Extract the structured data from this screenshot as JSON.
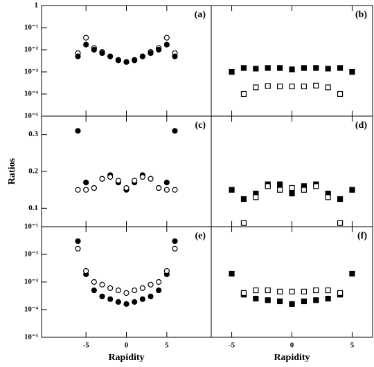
{
  "chart_data": [
    {
      "type": "scatter",
      "label": "(a)",
      "log": true,
      "x": [
        -6,
        -5,
        -4,
        -3,
        -2,
        -1,
        0,
        1,
        2,
        3,
        4,
        5,
        6
      ],
      "xlim": [
        -10.5,
        10.5
      ],
      "xticks": [
        -5,
        0,
        5
      ],
      "ylim": [
        1e-05,
        1
      ],
      "yticks": [
        {
          "value": 1,
          "label": "1"
        },
        {
          "value": 0.1,
          "label": "10⁻¹"
        },
        {
          "value": 0.01,
          "label": "10⁻²"
        },
        {
          "value": 0.001,
          "label": "10⁻³"
        },
        {
          "value": 0.0001,
          "label": "10⁻⁴"
        },
        {
          "value": 1e-05,
          "label": "10⁻⁵"
        }
      ],
      "series": [
        {
          "marker": "circle",
          "filled": false,
          "color": "#000000",
          "values": [
            0.007,
            0.035,
            0.012,
            0.008,
            0.005,
            0.0035,
            0.0028,
            0.0035,
            0.005,
            0.008,
            0.012,
            0.035,
            0.007
          ]
        },
        {
          "marker": "circle",
          "filled": true,
          "color": "#000000",
          "values": [
            0.005,
            0.017,
            0.01,
            0.007,
            0.005,
            0.0033,
            0.0028,
            0.0033,
            0.005,
            0.007,
            0.01,
            0.017,
            0.005
          ]
        }
      ]
    },
    {
      "type": "scatter",
      "label": "(b)",
      "log": true,
      "x": [
        -5,
        -4,
        -3,
        -2,
        -1,
        0,
        1,
        2,
        3,
        4,
        5
      ],
      "xlim": [
        -6.7,
        6.7
      ],
      "xticks": [
        -5,
        0,
        5
      ],
      "ylim": [
        1e-05,
        1
      ],
      "series": [
        {
          "marker": "square",
          "filled": true,
          "color": "#000000",
          "values": [
            0.001,
            0.0015,
            0.0014,
            0.0015,
            0.0015,
            0.0013,
            0.0015,
            0.0015,
            0.0014,
            0.0015,
            0.001
          ]
        },
        {
          "marker": "square",
          "filled": false,
          "color": "#000000",
          "values": [
            null,
            0.0001,
            0.0002,
            0.00023,
            0.00022,
            0.00022,
            0.00022,
            0.00024,
            0.0002,
            0.0001,
            null
          ]
        }
      ]
    },
    {
      "type": "scatter",
      "label": "(c)",
      "log": false,
      "ylabel": "Ratios",
      "x": [
        -6,
        -5,
        -4,
        -3,
        -2,
        -1,
        0,
        1,
        2,
        3,
        4,
        5,
        6
      ],
      "xlim": [
        -10.5,
        10.5
      ],
      "xticks": [
        -5,
        0,
        5
      ],
      "ylim": [
        0.05,
        0.35
      ],
      "yticks": [
        0.1,
        0.2,
        0.3
      ],
      "series": [
        {
          "marker": "circle",
          "filled": true,
          "color": "#000000",
          "values": [
            0.31,
            0.17,
            0.155,
            0.18,
            0.19,
            0.17,
            0.15,
            0.17,
            0.19,
            0.18,
            0.155,
            0.17,
            0.31
          ]
        },
        {
          "marker": "circle",
          "filled": false,
          "color": "#000000",
          "values": [
            0.15,
            0.15,
            0.155,
            0.18,
            0.185,
            0.175,
            0.155,
            0.175,
            0.185,
            0.18,
            0.155,
            0.15,
            0.15
          ]
        }
      ]
    },
    {
      "type": "scatter",
      "label": "(d)",
      "log": false,
      "x": [
        -5,
        -4,
        -3,
        -2,
        -1,
        0,
        1,
        2,
        3,
        4,
        5
      ],
      "xlim": [
        -6.7,
        6.7
      ],
      "xticks": [
        -5,
        0,
        5
      ],
      "ylim": [
        0.05,
        0.35
      ],
      "series": [
        {
          "marker": "square",
          "filled": true,
          "color": "#000000",
          "values": [
            0.15,
            0.125,
            0.14,
            0.165,
            0.165,
            0.14,
            0.16,
            0.165,
            0.14,
            0.125,
            0.15
          ]
        },
        {
          "marker": "square",
          "filled": false,
          "color": "#000000",
          "values": [
            null,
            0.06,
            0.13,
            0.16,
            0.15,
            0.155,
            0.15,
            0.16,
            0.13,
            0.06,
            null
          ]
        }
      ]
    },
    {
      "type": "scatter",
      "label": "(e)",
      "log": true,
      "xlabel": "Rapidity",
      "x": [
        -6,
        -5,
        -4,
        -3,
        -2,
        -1,
        0,
        1,
        2,
        3,
        4,
        5,
        6
      ],
      "xlim": [
        -10.5,
        10.5
      ],
      "xticks": [
        -5,
        0,
        5
      ],
      "ylim": [
        1e-05,
        0.1
      ],
      "yticks": [
        {
          "value": 0.1,
          "label": "10⁻¹"
        },
        {
          "value": 0.01,
          "label": "10⁻²"
        },
        {
          "value": 0.001,
          "label": "10⁻³"
        },
        {
          "value": 0.0001,
          "label": "10⁻⁴"
        },
        {
          "value": 1e-05,
          "label": "10⁻⁵"
        }
      ],
      "series": [
        {
          "marker": "circle",
          "filled": true,
          "color": "#000000",
          "values": [
            0.03,
            0.0019,
            0.0005,
            0.0003,
            0.00024,
            0.00019,
            0.00016,
            0.00019,
            0.00024,
            0.0003,
            0.0005,
            0.0019,
            0.03
          ]
        },
        {
          "marker": "circle",
          "filled": false,
          "color": "#000000",
          "values": [
            0.016,
            0.0025,
            0.001,
            0.0008,
            0.0006,
            0.0005,
            0.0004,
            0.0005,
            0.0006,
            0.0008,
            0.001,
            0.0025,
            0.016
          ]
        }
      ]
    },
    {
      "type": "scatter",
      "label": "(f)",
      "log": true,
      "xlabel": "Rapidity",
      "x": [
        -5,
        -4,
        -3,
        -2,
        -1,
        0,
        1,
        2,
        3,
        4,
        5
      ],
      "xlim": [
        -6.7,
        6.7
      ],
      "xticks": [
        -5,
        0,
        5
      ],
      "ylim": [
        1e-05,
        0.1
      ],
      "series": [
        {
          "marker": "square",
          "filled": true,
          "color": "#000000",
          "values": [
            0.002,
            0.00035,
            0.00025,
            0.00022,
            0.0002,
            0.00016,
            0.0002,
            0.00022,
            0.00025,
            0.00035,
            0.002
          ]
        },
        {
          "marker": "square",
          "filled": false,
          "color": "#000000",
          "values": [
            null,
            0.0004,
            0.0005,
            0.0005,
            0.00045,
            0.00045,
            0.00045,
            0.0005,
            0.0005,
            0.0004,
            null
          ]
        }
      ]
    }
  ]
}
